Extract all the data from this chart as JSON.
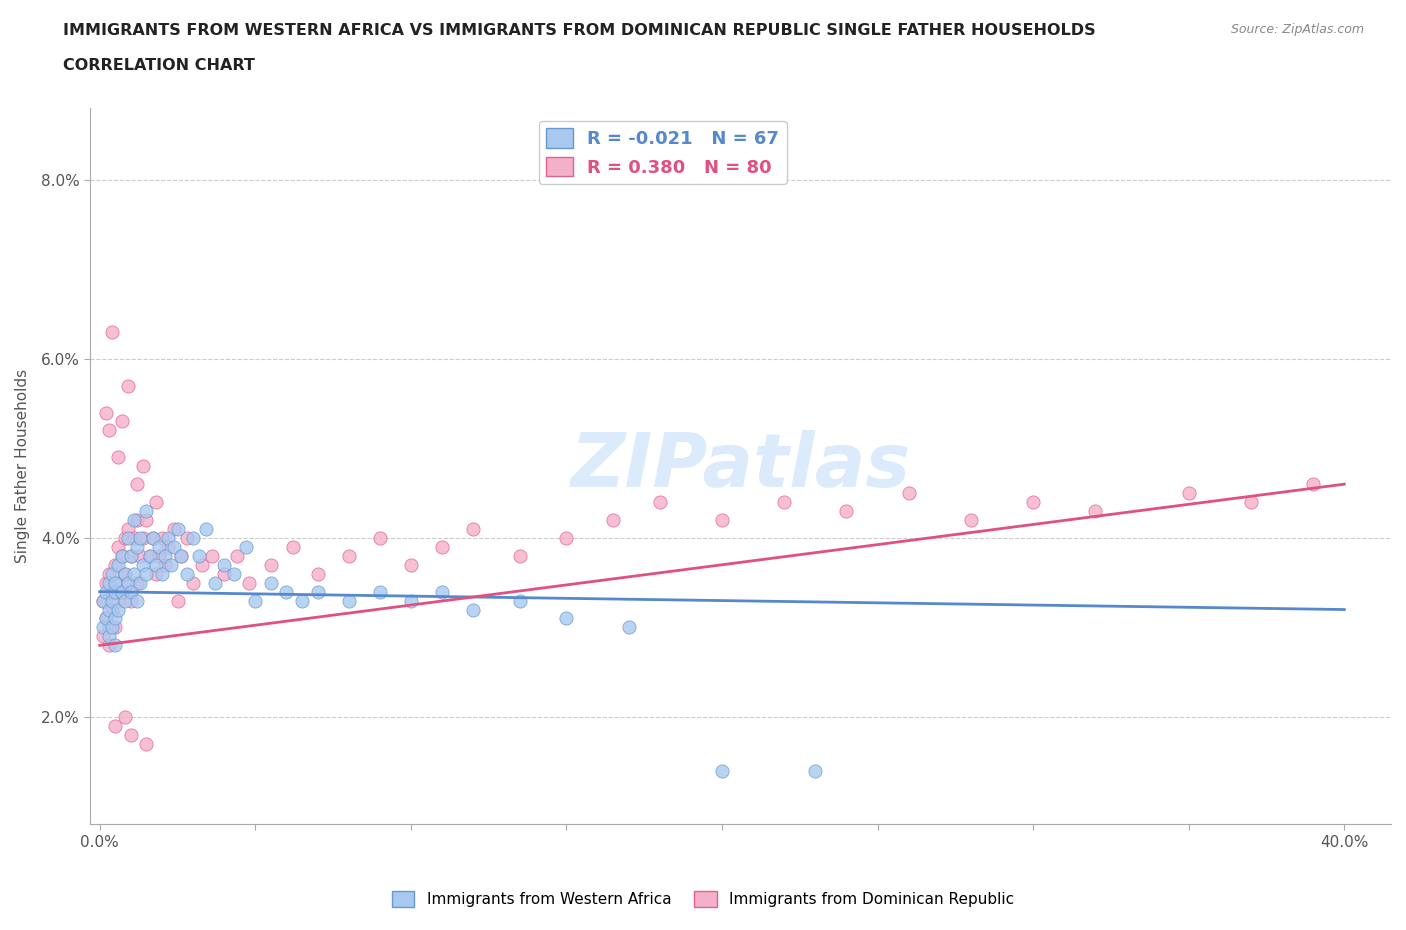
{
  "title_line1": "IMMIGRANTS FROM WESTERN AFRICA VS IMMIGRANTS FROM DOMINICAN REPUBLIC SINGLE FATHER HOUSEHOLDS",
  "title_line2": "CORRELATION CHART",
  "source": "Source: ZipAtlas.com",
  "ylabel": "Single Father Households",
  "xlim_min": -0.003,
  "xlim_max": 0.415,
  "ylim_min": 0.008,
  "ylim_max": 0.088,
  "xticks": [
    0.0,
    0.05,
    0.1,
    0.15,
    0.2,
    0.25,
    0.3,
    0.35,
    0.4
  ],
  "xtick_labels": [
    "0.0%",
    "",
    "",
    "",
    "",
    "",
    "",
    "",
    "40.0%"
  ],
  "yticks": [
    0.02,
    0.04,
    0.06,
    0.08
  ],
  "ytick_labels": [
    "2.0%",
    "4.0%",
    "6.0%",
    "8.0%"
  ],
  "color_blue": "#A8C8F0",
  "color_pink": "#F4B0C8",
  "edge_blue": "#6699CC",
  "edge_pink": "#E06090",
  "line_blue": "#5588CC",
  "line_pink": "#E05080",
  "R_blue": -0.021,
  "N_blue": 67,
  "R_pink": 0.38,
  "N_pink": 80,
  "legend_label_blue": "Immigrants from Western Africa",
  "legend_label_pink": "Immigrants from Dominican Republic",
  "watermark": "ZIPatlas",
  "blue_trend_start": 0.034,
  "blue_trend_end": 0.032,
  "pink_trend_start": 0.028,
  "pink_trend_end": 0.046,
  "blue_x": [
    0.001,
    0.001,
    0.002,
    0.002,
    0.003,
    0.003,
    0.003,
    0.004,
    0.004,
    0.004,
    0.005,
    0.005,
    0.005,
    0.005,
    0.006,
    0.006,
    0.007,
    0.007,
    0.008,
    0.008,
    0.009,
    0.009,
    0.01,
    0.01,
    0.011,
    0.011,
    0.012,
    0.012,
    0.013,
    0.013,
    0.014,
    0.015,
    0.015,
    0.016,
    0.017,
    0.018,
    0.019,
    0.02,
    0.021,
    0.022,
    0.023,
    0.024,
    0.025,
    0.026,
    0.028,
    0.03,
    0.032,
    0.034,
    0.037,
    0.04,
    0.043,
    0.047,
    0.05,
    0.055,
    0.06,
    0.065,
    0.07,
    0.08,
    0.09,
    0.1,
    0.11,
    0.12,
    0.135,
    0.15,
    0.17,
    0.2,
    0.23
  ],
  "blue_y": [
    0.033,
    0.03,
    0.034,
    0.031,
    0.035,
    0.032,
    0.029,
    0.036,
    0.033,
    0.03,
    0.034,
    0.031,
    0.028,
    0.035,
    0.037,
    0.032,
    0.038,
    0.034,
    0.036,
    0.033,
    0.04,
    0.035,
    0.038,
    0.034,
    0.042,
    0.036,
    0.039,
    0.033,
    0.04,
    0.035,
    0.037,
    0.043,
    0.036,
    0.038,
    0.04,
    0.037,
    0.039,
    0.036,
    0.038,
    0.04,
    0.037,
    0.039,
    0.041,
    0.038,
    0.036,
    0.04,
    0.038,
    0.041,
    0.035,
    0.037,
    0.036,
    0.039,
    0.033,
    0.035,
    0.034,
    0.033,
    0.034,
    0.033,
    0.034,
    0.033,
    0.034,
    0.032,
    0.033,
    0.031,
    0.03,
    0.014,
    0.014
  ],
  "pink_x": [
    0.001,
    0.001,
    0.002,
    0.002,
    0.003,
    0.003,
    0.003,
    0.004,
    0.004,
    0.005,
    0.005,
    0.005,
    0.006,
    0.006,
    0.007,
    0.007,
    0.008,
    0.008,
    0.009,
    0.009,
    0.01,
    0.01,
    0.011,
    0.012,
    0.012,
    0.013,
    0.014,
    0.015,
    0.016,
    0.017,
    0.018,
    0.019,
    0.02,
    0.021,
    0.022,
    0.024,
    0.026,
    0.028,
    0.03,
    0.033,
    0.036,
    0.04,
    0.044,
    0.048,
    0.055,
    0.062,
    0.07,
    0.08,
    0.09,
    0.1,
    0.11,
    0.12,
    0.135,
    0.15,
    0.165,
    0.18,
    0.2,
    0.22,
    0.24,
    0.26,
    0.28,
    0.3,
    0.32,
    0.35,
    0.37,
    0.39,
    0.005,
    0.008,
    0.01,
    0.015,
    0.002,
    0.003,
    0.006,
    0.007,
    0.004,
    0.009,
    0.012,
    0.014,
    0.018,
    0.025
  ],
  "pink_y": [
    0.033,
    0.029,
    0.035,
    0.031,
    0.036,
    0.03,
    0.028,
    0.034,
    0.032,
    0.035,
    0.03,
    0.037,
    0.039,
    0.033,
    0.038,
    0.034,
    0.04,
    0.036,
    0.041,
    0.035,
    0.038,
    0.033,
    0.04,
    0.042,
    0.035,
    0.038,
    0.04,
    0.042,
    0.038,
    0.04,
    0.036,
    0.038,
    0.04,
    0.037,
    0.039,
    0.041,
    0.038,
    0.04,
    0.035,
    0.037,
    0.038,
    0.036,
    0.038,
    0.035,
    0.037,
    0.039,
    0.036,
    0.038,
    0.04,
    0.037,
    0.039,
    0.041,
    0.038,
    0.04,
    0.042,
    0.044,
    0.042,
    0.044,
    0.043,
    0.045,
    0.042,
    0.044,
    0.043,
    0.045,
    0.044,
    0.046,
    0.019,
    0.02,
    0.018,
    0.017,
    0.054,
    0.052,
    0.049,
    0.053,
    0.063,
    0.057,
    0.046,
    0.048,
    0.044,
    0.033
  ]
}
